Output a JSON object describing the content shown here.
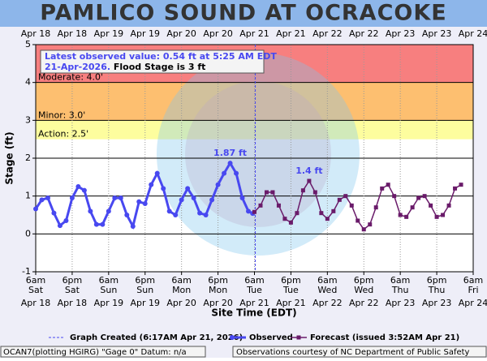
{
  "chart_data": {
    "type": "line",
    "title": "PAMLICO SOUND AT OCRACOKE",
    "ylabel": "Stage (ft)",
    "xlabel": "Site Time (EDT)",
    "xlim": [
      0,
      144
    ],
    "xticks": [
      {
        "value": 0,
        "label": "6am"
      },
      {
        "value": 12,
        "label": "6pm"
      },
      {
        "value": 24,
        "label": "6am"
      },
      {
        "value": 36,
        "label": "6pm"
      },
      {
        "value": 48,
        "label": "6am"
      },
      {
        "value": 60,
        "label": "6pm"
      },
      {
        "value": 72,
        "label": "6am"
      },
      {
        "value": 84,
        "label": "6pm"
      },
      {
        "value": 96,
        "label": "6am"
      },
      {
        "value": 108,
        "label": "6pm"
      },
      {
        "value": 120,
        "label": "6am"
      },
      {
        "value": 132,
        "label": "6pm"
      },
      {
        "value": 144,
        "label": "6am"
      }
    ],
    "xtick_days": [
      "Sat",
      "Sat",
      "Sun",
      "Sun",
      "Mon",
      "Mon",
      "Tue",
      "Tue",
      "Wed",
      "Wed",
      "Thu",
      "Thu",
      "Fri"
    ],
    "xtick_dates": [
      "Apr 18",
      "Apr 18",
      "Apr 19",
      "Apr 19",
      "Apr 20",
      "Apr 20",
      "Apr 21",
      "Apr 21",
      "Apr 22",
      "Apr 22",
      "Apr 23",
      "Apr 23",
      "Apr 24"
    ],
    "ylim": [
      -1,
      5
    ],
    "yticks": [
      -1,
      0,
      1,
      2,
      3,
      4,
      5
    ],
    "grid": true,
    "flood_categories": [
      {
        "label": "Moderate: 4.0'",
        "value": 4,
        "color": "#f77f7f"
      },
      {
        "label": "Minor: 3.0'",
        "value": 3,
        "color": "#fdbf70"
      },
      {
        "label": "Action: 2.5'",
        "value": 2.5,
        "color": "#fdfd9e"
      }
    ],
    "graph_created": {
      "label": "Graph Created (6:17AM Apr 21, 2026)",
      "x": 72.28
    },
    "info": {
      "latest": "Latest observed value: 0.54 ft at 5:25 AM EDT",
      "date": "21-Apr-2026.",
      "flood_stage": "Flood Stage is 3 ft"
    },
    "series": [
      {
        "name": "Observed",
        "color": "#4848f0",
        "marker": "circle",
        "x": [
          0,
          2,
          4,
          6,
          8,
          10,
          12,
          14,
          16,
          18,
          20,
          22,
          24,
          26,
          28,
          30,
          32,
          34,
          36,
          38,
          40,
          42,
          44,
          46,
          48,
          50,
          52,
          54,
          56,
          58,
          60,
          62,
          64,
          66,
          68,
          70,
          71.4
        ],
        "values": [
          0.66,
          0.9,
          0.95,
          0.55,
          0.22,
          0.35,
          0.95,
          1.25,
          1.15,
          0.6,
          0.25,
          0.25,
          0.6,
          0.95,
          0.95,
          0.5,
          0.2,
          0.85,
          0.8,
          1.3,
          1.6,
          1.2,
          0.6,
          0.5,
          0.9,
          1.2,
          0.95,
          0.55,
          0.5,
          0.9,
          1.3,
          1.6,
          1.87,
          1.6,
          0.95,
          0.6,
          0.54
        ],
        "value_labels": [
          null,
          null,
          null,
          null,
          null,
          null,
          null,
          null,
          null,
          null,
          null,
          null,
          null,
          null,
          null,
          null,
          null,
          null,
          null,
          null,
          null,
          null,
          null,
          null,
          null,
          null,
          null,
          null,
          null,
          null,
          null,
          null,
          "1.87 ft",
          null,
          null,
          null,
          null
        ]
      },
      {
        "name": "Forecast (issued 3:52AM Apr 21)",
        "color": "#6a1b6a",
        "marker": "square",
        "x": [
          72,
          74,
          76,
          78,
          80,
          82,
          84,
          86,
          88,
          90,
          92,
          94,
          96,
          98,
          100,
          102,
          104,
          106,
          108,
          110,
          112,
          114,
          116,
          118,
          120,
          122,
          124,
          126,
          128,
          130,
          132,
          134,
          136,
          138,
          140
        ],
        "values": [
          0.58,
          0.75,
          1.1,
          1.1,
          0.75,
          0.4,
          0.3,
          0.55,
          1.15,
          1.4,
          1.1,
          0.55,
          0.4,
          0.6,
          0.9,
          1.0,
          0.75,
          0.35,
          0.12,
          0.25,
          0.7,
          1.2,
          1.3,
          1.0,
          0.5,
          0.45,
          0.7,
          0.95,
          1.0,
          0.75,
          0.45,
          0.5,
          0.75,
          1.2,
          1.3
        ],
        "value_labels": [
          null,
          null,
          null,
          null,
          null,
          null,
          null,
          null,
          null,
          "1.4 ft",
          null,
          null,
          null,
          null,
          null,
          null,
          null,
          null,
          null,
          null,
          null,
          null,
          null,
          null,
          null,
          null,
          null,
          null,
          null,
          null,
          null,
          null,
          null,
          null,
          null
        ]
      }
    ],
    "footer_left": "OCAN7(plotting HGIRG) \"Gage 0\" Datum: n/a",
    "footer_right": "Observations courtesy of NC Department of Public Safety"
  }
}
